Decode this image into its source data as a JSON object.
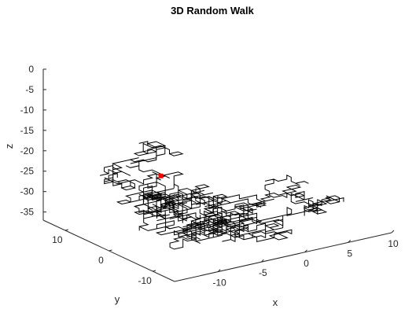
{
  "chart_data": {
    "type": "line",
    "title": "3D Random Walk",
    "xlabel": "x",
    "ylabel": "y",
    "zlabel": "z",
    "xlim": [
      -15,
      10
    ],
    "ylim": [
      -15,
      15
    ],
    "zlim": [
      -37,
      0
    ],
    "xticks": [
      -10,
      -5,
      0,
      5,
      10
    ],
    "yticks": [
      -10,
      0,
      10
    ],
    "zticks": [
      0,
      -5,
      -10,
      -15,
      -20,
      -25,
      -30,
      -35
    ],
    "grid": false,
    "projection": "3d-perspective",
    "walk_color": "#000000",
    "marker_color": "#ff0000",
    "marker_note": "start point near x=-8, y=2, z=-23"
  }
}
